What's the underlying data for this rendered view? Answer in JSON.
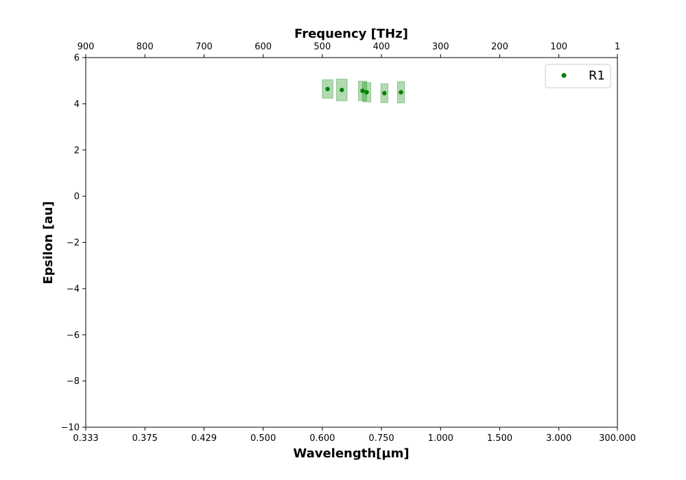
{
  "chart_data": {
    "type": "scatter",
    "xlabel": "Wavelength[µm]",
    "x2label": "Frequency [THz]",
    "ylabel": "Epsilon [au]",
    "bottom_axis": {
      "scale": "frequency",
      "range_thz": [
        900,
        1
      ],
      "ticks": [
        {
          "thz": 900,
          "label": "0.333"
        },
        {
          "thz": 800,
          "label": "0.375"
        },
        {
          "thz": 700,
          "label": "0.429"
        },
        {
          "thz": 600,
          "label": "0.500"
        },
        {
          "thz": 500,
          "label": "0.600"
        },
        {
          "thz": 400,
          "label": "0.750"
        },
        {
          "thz": 300,
          "label": "1.000"
        },
        {
          "thz": 200,
          "label": "1.500"
        },
        {
          "thz": 100,
          "label": "3.000"
        },
        {
          "thz": 1,
          "label": "300.000"
        }
      ]
    },
    "top_axis": {
      "range": [
        900,
        1
      ],
      "ticks": [
        900,
        800,
        700,
        600,
        500,
        400,
        300,
        200,
        100,
        1
      ]
    },
    "ylim": [
      -10,
      6
    ],
    "yticks": [
      -10,
      -8,
      -6,
      -4,
      -2,
      0,
      2,
      4,
      6
    ],
    "ytick_labels": [
      "−10",
      "−8",
      "−6",
      "−4",
      "−2",
      "0",
      "2",
      "4",
      "6"
    ],
    "grid": false,
    "legend": {
      "position": "top-right",
      "entries": [
        "R1"
      ]
    },
    "series": [
      {
        "name": "R1",
        "color": "#008000",
        "error_color": "#008000",
        "points": [
          {
            "frequency_thz": 491,
            "epsilon": 4.64,
            "freq_err": 9,
            "eps_err": 0.4
          },
          {
            "frequency_thz": 467,
            "epsilon": 4.6,
            "freq_err": 9,
            "eps_err": 0.47
          },
          {
            "frequency_thz": 432,
            "epsilon": 4.56,
            "freq_err": 7,
            "eps_err": 0.42
          },
          {
            "frequency_thz": 425,
            "epsilon": 4.5,
            "freq_err": 7,
            "eps_err": 0.42
          },
          {
            "frequency_thz": 395,
            "epsilon": 4.46,
            "freq_err": 6,
            "eps_err": 0.41
          },
          {
            "frequency_thz": 367,
            "epsilon": 4.5,
            "freq_err": 6,
            "eps_err": 0.46
          }
        ]
      }
    ]
  }
}
